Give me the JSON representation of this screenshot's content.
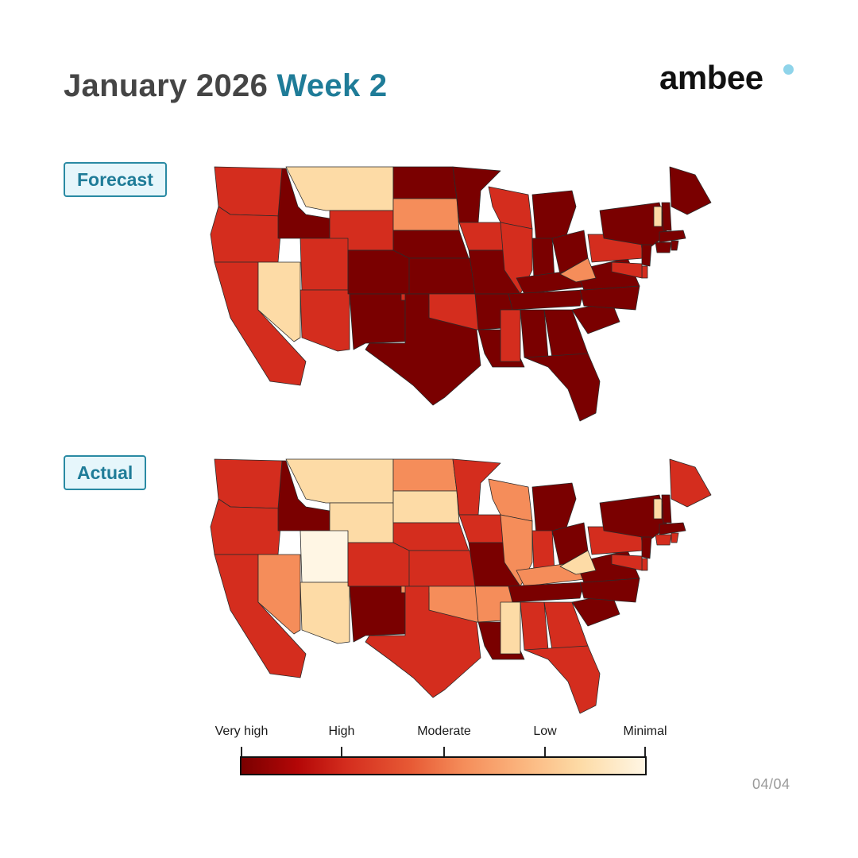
{
  "header": {
    "title_main": "January 2026",
    "title_week": "Week 2",
    "brand": "ambee"
  },
  "panels": [
    {
      "label": "Forecast"
    },
    {
      "label": "Actual"
    }
  ],
  "legend": {
    "labels": [
      "Very high",
      "High",
      "Moderate",
      "Low",
      "Minimal"
    ]
  },
  "page_number": "04/04",
  "colors": {
    "title": "#454545",
    "accent": "#1f7c98",
    "very_high": "#7a0000",
    "high": "#d42d1e",
    "moderate_high": "#e75a35",
    "moderate": "#f58d5a",
    "low": "#fddba6",
    "minimal": "#fff6e4"
  },
  "map_data": {
    "forecast": {
      "WA": "high",
      "OR": "high",
      "CA": "high",
      "NV": "low",
      "ID": "very_high",
      "MT": "low",
      "WY": "high",
      "UT": "high",
      "AZ": "high",
      "CO": "very_high",
      "NM": "very_high",
      "ND": "very_high",
      "SD": "moderate",
      "NE": "very_high",
      "KS": "very_high",
      "OK": "high",
      "TX": "very_high",
      "MN": "very_high",
      "IA": "high",
      "MO": "very_high",
      "AR": "very_high",
      "LA": "very_high",
      "WI": "high",
      "IL": "high",
      "MI": "very_high",
      "IN": "very_high",
      "OH": "very_high",
      "KY": "very_high",
      "TN": "very_high",
      "MS": "high",
      "AL": "very_high",
      "GA": "very_high",
      "FL": "very_high",
      "SC": "very_high",
      "NC": "very_high",
      "VA": "very_high",
      "WV": "moderate",
      "PA": "high",
      "NY": "very_high",
      "VT": "low",
      "NH": "very_high",
      "ME": "very_high",
      "MA": "very_high",
      "CT": "very_high",
      "RI": "very_high",
      "NJ": "very_high",
      "DE": "high",
      "MD": "high"
    },
    "actual": {
      "WA": "high",
      "OR": "high",
      "CA": "high",
      "NV": "moderate",
      "ID": "very_high",
      "MT": "low",
      "WY": "low",
      "UT": "minimal",
      "AZ": "low",
      "CO": "high",
      "NM": "very_high",
      "ND": "moderate",
      "SD": "low",
      "NE": "high",
      "KS": "high",
      "OK": "moderate",
      "TX": "high",
      "MN": "high",
      "IA": "high",
      "MO": "very_high",
      "AR": "moderate",
      "LA": "very_high",
      "WI": "moderate",
      "IL": "moderate",
      "MI": "very_high",
      "IN": "high",
      "OH": "very_high",
      "KY": "moderate",
      "TN": "very_high",
      "MS": "low",
      "AL": "high",
      "GA": "high",
      "FL": "high",
      "SC": "very_high",
      "NC": "very_high",
      "VA": "very_high",
      "WV": "low",
      "PA": "high",
      "NY": "very_high",
      "VT": "low",
      "NH": "very_high",
      "ME": "high",
      "MA": "very_high",
      "CT": "high",
      "RI": "high",
      "NJ": "very_high",
      "DE": "high",
      "MD": "high"
    }
  }
}
